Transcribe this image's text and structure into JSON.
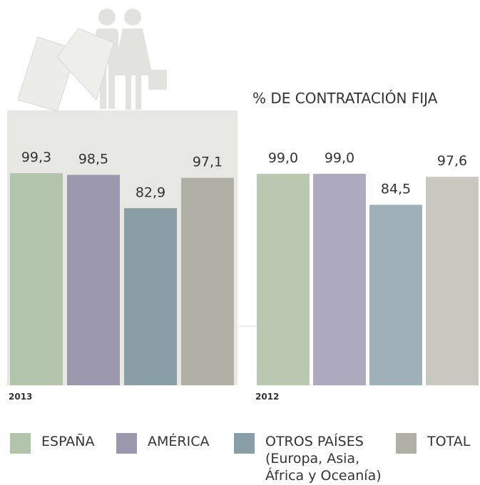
{
  "chart_data": {
    "type": "bar",
    "title": "% DE CONTRATACIÓN FIJA",
    "categories": [
      "2013",
      "2012"
    ],
    "series": [
      {
        "name": "ESPAÑA",
        "colors": [
          "#b3c4ad",
          "#bac8b2"
        ],
        "values": [
          99.3,
          99.0
        ],
        "value_labels": [
          "99,3",
          "99,0"
        ]
      },
      {
        "name": "AMÉRICA",
        "colors": [
          "#9b97ad",
          "#aeaabf"
        ],
        "values": [
          98.5,
          99.0
        ],
        "value_labels": [
          "98,5",
          "99,0"
        ]
      },
      {
        "name": "OTROS PAÍSES (Europa, Asia, África y Oceanía)",
        "colors": [
          "#8a9ea6",
          "#a0b0b8"
        ],
        "values": [
          82.9,
          84.5
        ],
        "value_labels": [
          "82,9",
          "84,5"
        ]
      },
      {
        "name": "TOTAL",
        "colors": [
          "#b0b0a6",
          "#c8c8c0"
        ],
        "values": [
          97.1,
          97.6
        ],
        "value_labels": [
          "97,1",
          "97,6"
        ]
      }
    ],
    "ylim": [
      0,
      100
    ]
  }
}
